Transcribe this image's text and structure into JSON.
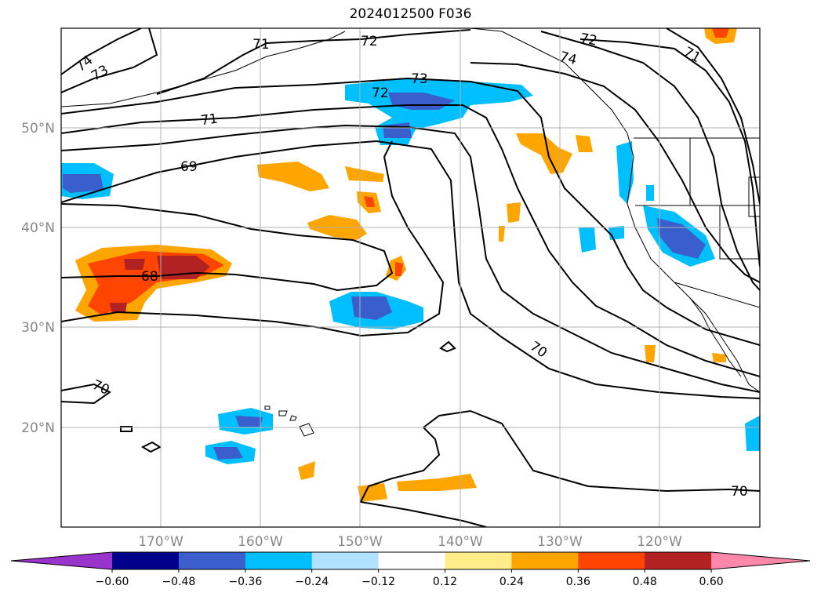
{
  "title": "2024012500 F036",
  "map": {
    "lat_labels": [
      "50°N",
      "40°N",
      "30°N",
      "20°N"
    ],
    "lon_labels": [
      "170°W",
      "160°W",
      "150°W",
      "140°W",
      "130°W",
      "120°W"
    ],
    "contour_labels": [
      "74",
      "73",
      "71",
      "72",
      "73",
      "72",
      "74",
      "72",
      "71",
      "71",
      "69",
      "68",
      "70",
      "70",
      "70"
    ],
    "grid": true
  },
  "colorbar": {
    "ticks": [
      "−0.60",
      "−0.48",
      "−0.36",
      "−0.24",
      "−0.12",
      "0.12",
      "0.24",
      "0.36",
      "0.48",
      "0.60"
    ],
    "colors": [
      "#9933cc",
      "#00008b",
      "#3a5fcd",
      "#00bfff",
      "#b0e2ff",
      "#ffffff",
      "#ffec8b",
      "#ffa500",
      "#ff4500",
      "#b22222",
      "#ff88aa"
    ]
  }
}
